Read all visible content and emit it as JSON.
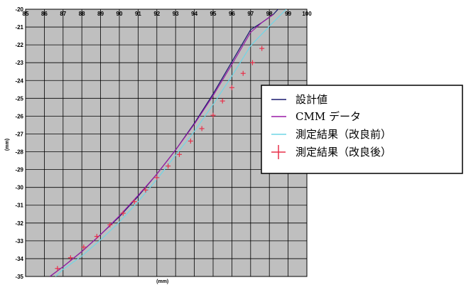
{
  "chart_data": {
    "type": "line",
    "xlabel": "(mm)",
    "ylabel": "(mm)",
    "xlim": [
      85,
      100
    ],
    "ylim": [
      -35,
      -20
    ],
    "xticks": [
      85,
      86,
      87,
      88,
      89,
      90,
      91,
      92,
      93,
      94,
      95,
      96,
      97,
      98,
      99,
      100
    ],
    "yticks": [
      -20,
      -21,
      -22,
      -23,
      -24,
      -25,
      -26,
      -27,
      -28,
      -29,
      -30,
      -31,
      -32,
      -33,
      -34,
      -35
    ],
    "grid": true,
    "legend_position": "right",
    "series": [
      {
        "name": "設計値",
        "style": "line",
        "color": "#1a1a6e",
        "x": [
          86.3,
          87.0,
          88.0,
          89.0,
          90.0,
          91.0,
          92.0,
          93.0,
          94.0,
          95.0,
          96.0,
          97.0,
          97.6,
          98.2,
          98.6
        ],
        "y": [
          -35.0,
          -34.45,
          -33.6,
          -32.65,
          -31.65,
          -30.5,
          -29.25,
          -27.9,
          -26.4,
          -24.75,
          -22.95,
          -21.15,
          -20.75,
          -20.3,
          -19.85
        ]
      },
      {
        "name": "CMM データ",
        "style": "line",
        "color": "#9a1aa6",
        "x": [
          86.3,
          87.0,
          88.0,
          89.0,
          90.0,
          91.0,
          92.0,
          93.0,
          94.0,
          95.0,
          96.0,
          97.0,
          97.6,
          98.2
        ],
        "y": [
          -35.0,
          -34.45,
          -33.6,
          -32.65,
          -31.6,
          -30.45,
          -29.25,
          -27.9,
          -26.45,
          -24.85,
          -23.1,
          -21.3,
          -20.75,
          -20.3
        ]
      },
      {
        "name": "測定結果（改良前）",
        "style": "line",
        "color": "#6fd6e6",
        "x": [
          86.6,
          87.0,
          88.0,
          89.0,
          90.0,
          91.0,
          92.0,
          93.0,
          94.0,
          95.0,
          96.0,
          97.0,
          98.0,
          98.9
        ],
        "y": [
          -35.0,
          -34.6,
          -33.85,
          -32.95,
          -31.95,
          -30.8,
          -29.55,
          -28.2,
          -26.85,
          -25.35,
          -23.75,
          -22.05,
          -20.95,
          -20.0
        ]
      },
      {
        "name": "測定結果（改良後）",
        "style": "markers",
        "color": "#e8304a",
        "x": [
          86.7,
          87.4,
          88.1,
          88.8,
          89.5,
          90.2,
          90.8,
          91.4,
          92.0,
          92.6,
          93.2,
          93.8,
          94.4,
          95.0,
          95.5,
          96.0,
          96.6,
          97.1,
          97.6
        ],
        "y": [
          -34.55,
          -33.95,
          -33.35,
          -32.75,
          -32.1,
          -31.45,
          -30.8,
          -30.15,
          -29.45,
          -28.8,
          -28.15,
          -27.4,
          -26.7,
          -25.95,
          -25.15,
          -24.4,
          -23.6,
          -23.0,
          -22.2
        ]
      }
    ]
  }
}
